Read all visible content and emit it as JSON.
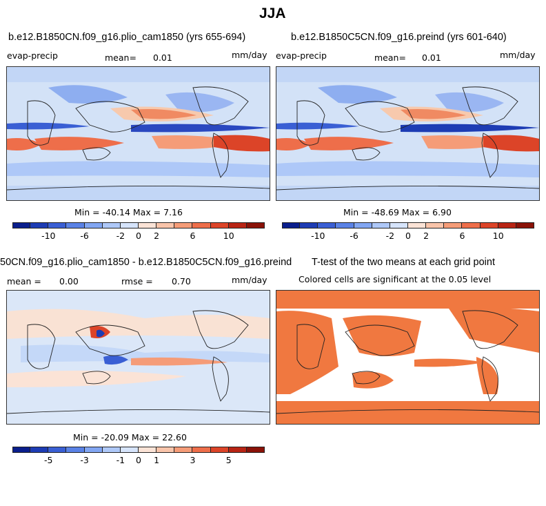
{
  "page_title": "JJA",
  "panels": [
    {
      "title": "b.e12.B1850CN.f09_g16.plio_cam1850 (yrs 655-694)",
      "left_label": "evap-precip",
      "mean_label": "mean=",
      "mean_value": "0.01",
      "units": "mm/day",
      "minmax": "Min = -40.14 Max =   7.16",
      "ticks": [
        "-10",
        "-6",
        "-2",
        "0",
        "2",
        "6",
        "10"
      ]
    },
    {
      "title": "b.e12.B1850C5CN.f09_g16.preind (yrs 601-640)",
      "left_label": "evap-precip",
      "mean_label": "mean=",
      "mean_value": "0.01",
      "units": "mm/day",
      "minmax": "Min = -48.69 Max =   6.90",
      "ticks": [
        "-10",
        "-6",
        "-2",
        "0",
        "2",
        "6",
        "10"
      ]
    },
    {
      "title": "50CN.f09_g16.plio_cam1850 - b.e12.B1850C5CN.f09_g16.preind",
      "mean_label": "mean =",
      "mean_value": "0.00",
      "rmse_label": "rmse =",
      "rmse_value": "0.70",
      "units": "mm/day",
      "minmax": "Min = -20.09 Max =  22.60",
      "ticks": [
        "-5",
        "-3",
        "-1",
        "0",
        "1",
        "3",
        "5"
      ]
    },
    {
      "title": "T-test of the two means at each grid point",
      "subtitle": "Colored cells are significant at the 0.05 level"
    }
  ],
  "colors": {
    "colorbar": [
      "#0a1e8c",
      "#1d3cb4",
      "#3a5fd4",
      "#5a82e6",
      "#82a6f2",
      "#aec8f8",
      "#d6e4fb",
      "#fbe3d6",
      "#f9c4aa",
      "#f59c78",
      "#ee6e4a",
      "#dc4428",
      "#b82414",
      "#8a1208"
    ],
    "ocean_neutral": "#d3e2f7",
    "ttest_fill": "#f07840"
  }
}
